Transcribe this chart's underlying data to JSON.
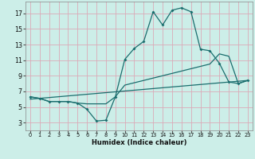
{
  "xlabel": "Humidex (Indice chaleur)",
  "background_color": "#cceee8",
  "grid_color": "#dbaab8",
  "line_color": "#1a6e6e",
  "xlim": [
    -0.5,
    23.5
  ],
  "ylim": [
    2.0,
    18.5
  ],
  "xticks": [
    0,
    1,
    2,
    3,
    4,
    5,
    6,
    7,
    8,
    9,
    10,
    11,
    12,
    13,
    14,
    15,
    16,
    17,
    18,
    19,
    20,
    21,
    22,
    23
  ],
  "yticks": [
    3,
    5,
    7,
    9,
    11,
    13,
    15,
    17
  ],
  "main_x": [
    0,
    1,
    2,
    3,
    4,
    5,
    6,
    7,
    8,
    9,
    10,
    11,
    12,
    13,
    14,
    15,
    16,
    17,
    18,
    19,
    20,
    21,
    22,
    23
  ],
  "main_y": [
    6.3,
    6.1,
    5.7,
    5.7,
    5.7,
    5.5,
    4.7,
    3.2,
    3.3,
    6.3,
    11.1,
    12.5,
    13.4,
    17.2,
    15.5,
    17.4,
    17.7,
    17.2,
    12.4,
    12.2,
    10.6,
    8.2,
    8.0,
    8.4
  ],
  "trend_x": [
    0,
    1,
    2,
    3,
    4,
    5,
    6,
    7,
    8,
    9,
    10,
    11,
    12,
    13,
    14,
    15,
    16,
    17,
    18,
    19,
    20,
    21,
    22,
    23
  ],
  "trend_y": [
    6.3,
    6.1,
    5.7,
    5.7,
    5.7,
    5.5,
    5.4,
    5.4,
    5.4,
    6.3,
    7.8,
    8.1,
    8.4,
    8.7,
    9.0,
    9.3,
    9.6,
    9.9,
    10.2,
    10.5,
    11.8,
    11.5,
    8.0,
    8.4
  ],
  "line_x": [
    0,
    23
  ],
  "line_y": [
    6.0,
    8.4
  ]
}
